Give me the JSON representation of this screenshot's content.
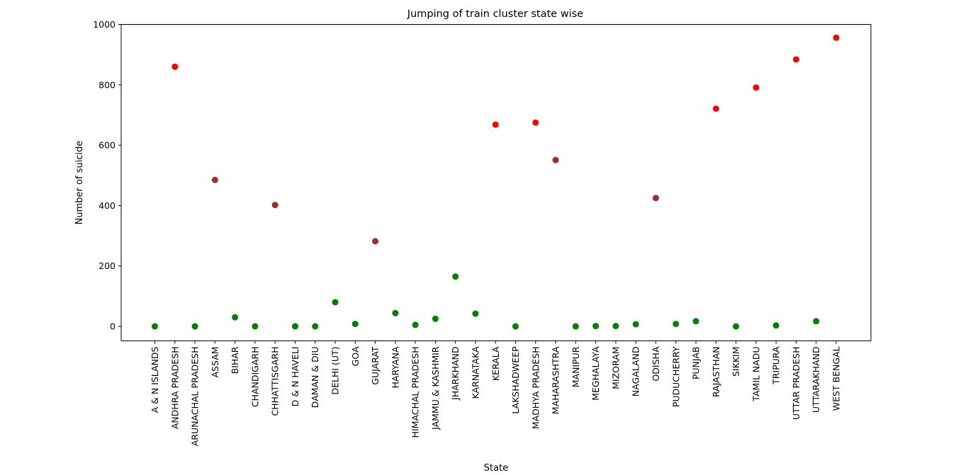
{
  "chart_data": {
    "type": "scatter",
    "title": "Jumping of train cluster state wise",
    "xlabel": "State",
    "ylabel": "Number of suicide",
    "ylim": [
      -48,
      1000
    ],
    "yticks": [
      0,
      200,
      400,
      600,
      800,
      1000
    ],
    "grid": false,
    "categories": [
      "A & N ISLANDS",
      "ANDHRA PRADESH",
      "ARUNACHAL PRADESH",
      "ASSAM",
      "BIHAR",
      "CHANDIGARH",
      "CHHATTISGARH",
      "D & N HAVELI",
      "DAMAN & DIU",
      "DELHI (UT)",
      "GOA",
      "GUJARAT",
      "HARYANA",
      "HIMACHAL PRADESH",
      "JAMMU & KASHMIR",
      "JHARKHAND",
      "KARNATAKA",
      "KERALA",
      "LAKSHADWEEP",
      "MADHYA PRADESH",
      "MAHARASHTRA",
      "MANIPUR",
      "MEGHALAYA",
      "MIZORAM",
      "NAGALAND",
      "ODISHA",
      "PUDUCHERRY",
      "PUNJAB",
      "RAJASTHAN",
      "SIKKIM",
      "TAMIL NADU",
      "TRIPURA",
      "UTTAR PRADESH",
      "UTTARAKHAND",
      "WEST BENGAL"
    ],
    "values": [
      0,
      860,
      0,
      485,
      30,
      0,
      402,
      0,
      0,
      80,
      8,
      282,
      44,
      5,
      25,
      165,
      42,
      668,
      0,
      675,
      551,
      0,
      1,
      1,
      7,
      425,
      8,
      17,
      721,
      0,
      791,
      3,
      884,
      17,
      956
    ],
    "clusters": [
      0,
      2,
      0,
      1,
      0,
      0,
      1,
      0,
      0,
      0,
      0,
      1,
      0,
      0,
      0,
      0,
      0,
      2,
      0,
      2,
      1,
      0,
      0,
      0,
      0,
      1,
      0,
      0,
      2,
      0,
      2,
      0,
      2,
      0,
      2
    ],
    "cluster_colors": [
      "#008000",
      "#a52a2a",
      "#ff0000"
    ]
  }
}
